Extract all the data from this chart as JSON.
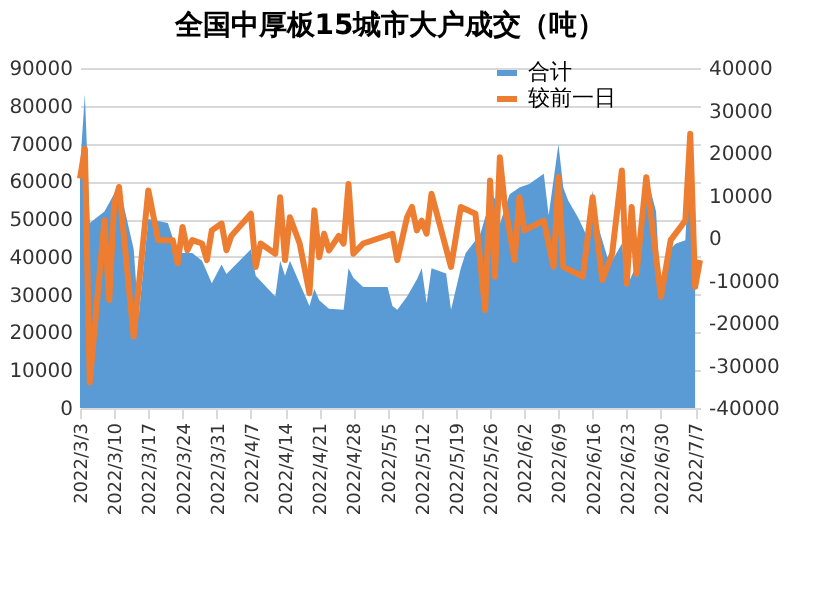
{
  "chart_data": {
    "type": "area",
    "title": "全国中厚板15城市大户成交（吨）",
    "legend": "top right",
    "grid": "y",
    "xlim": [
      "2022-03-03",
      "2022-07-08"
    ],
    "xticks": [
      {
        "value": "2022-03-03",
        "label": "2022/3/3"
      },
      {
        "value": "2022-03-10",
        "label": "2022/3/10"
      },
      {
        "value": "2022-03-17",
        "label": "2022/3/17"
      },
      {
        "value": "2022-03-24",
        "label": "2022/3/24"
      },
      {
        "value": "2022-03-31",
        "label": "2022/3/31"
      },
      {
        "value": "2022-04-07",
        "label": "2022/4/7"
      },
      {
        "value": "2022-04-14",
        "label": "2022/4/14"
      },
      {
        "value": "2022-04-21",
        "label": "2022/4/21"
      },
      {
        "value": "2022-04-28",
        "label": "2022/4/28"
      },
      {
        "value": "2022-05-05",
        "label": "2022/5/5"
      },
      {
        "value": "2022-05-12",
        "label": "2022/5/12"
      },
      {
        "value": "2022-05-19",
        "label": "2022/5/19"
      },
      {
        "value": "2022-05-26",
        "label": "2022/5/26"
      },
      {
        "value": "2022-06-02",
        "label": "2022/6/2"
      },
      {
        "value": "2022-06-09",
        "label": "2022/6/9"
      },
      {
        "value": "2022-06-16",
        "label": "2022/6/16"
      },
      {
        "value": "2022-06-23",
        "label": "2022/6/23"
      },
      {
        "value": "2022-06-30",
        "label": "2022/6/30"
      },
      {
        "value": "2022-07-07",
        "label": "2022/7/7"
      }
    ],
    "ylim": [
      0,
      90000
    ],
    "yticks": [
      0,
      10000,
      20000,
      30000,
      40000,
      50000,
      60000,
      70000,
      80000,
      90000
    ],
    "y2lim": [
      -40000,
      40000
    ],
    "y2ticks": [
      -40000,
      -30000,
      -20000,
      -10000,
      0,
      10000,
      20000,
      30000,
      40000
    ],
    "series": [
      {
        "name": "合计",
        "type": "area",
        "color": "#5b9bd5",
        "x": [
          "2022-03-03",
          "2022-03-04",
          "2022-03-05",
          "2022-03-08",
          "2022-03-11",
          "2022-03-14",
          "2022-03-15",
          "2022-03-17",
          "2022-03-21",
          "2022-03-23",
          "2022-03-26",
          "2022-03-28",
          "2022-03-30",
          "2022-04-01",
          "2022-04-02",
          "2022-04-07",
          "2022-04-08",
          "2022-04-12",
          "2022-04-13",
          "2022-04-14",
          "2022-04-15",
          "2022-04-19",
          "2022-04-20",
          "2022-04-21",
          "2022-04-23",
          "2022-04-26",
          "2022-04-27",
          "2022-04-28",
          "2022-04-30",
          "2022-05-05",
          "2022-05-06",
          "2022-05-07",
          "2022-05-09",
          "2022-05-11",
          "2022-05-12",
          "2022-05-13",
          "2022-05-14",
          "2022-05-17",
          "2022-05-18",
          "2022-05-20",
          "2022-05-21",
          "2022-05-24",
          "2022-05-25",
          "2022-05-27",
          "2022-05-28",
          "2022-05-30",
          "2022-06-01",
          "2022-06-03",
          "2022-06-06",
          "2022-06-07",
          "2022-06-09",
          "2022-06-10",
          "2022-06-11",
          "2022-06-13",
          "2022-06-15",
          "2022-06-16",
          "2022-06-17",
          "2022-06-19",
          "2022-06-20",
          "2022-06-22",
          "2022-06-23",
          "2022-06-25",
          "2022-06-27",
          "2022-06-29",
          "2022-06-30",
          "2022-07-01",
          "2022-07-03",
          "2022-07-05",
          "2022-07-06",
          "2022-07-07"
        ],
        "values": [
          63600,
          83000,
          49000,
          52000,
          59000,
          42000,
          24000,
          50000,
          49000,
          41000,
          41000,
          39000,
          33000,
          38000,
          35500,
          42000,
          35000,
          29500,
          39000,
          35000,
          39000,
          27000,
          31500,
          28500,
          26300,
          26000,
          37000,
          34500,
          32000,
          32000,
          27000,
          26000,
          29500,
          34000,
          37000,
          27700,
          37000,
          35600,
          26000,
          37000,
          41000,
          46000,
          50500,
          55800,
          48700,
          56600,
          58400,
          59300,
          62000,
          51000,
          69800,
          58400,
          54900,
          50500,
          45000,
          57500,
          48700,
          40000,
          39000,
          43500,
          32000,
          38000,
          62000,
          52000,
          28600,
          40900,
          43500,
          44400,
          70700,
          51400
        ]
      },
      {
        "name": "较前一日",
        "type": "line",
        "axis": "y2",
        "color": "#ed7d31",
        "line_style": "solid",
        "x": [
          "2022-03-03",
          "2022-03-04",
          "2022-03-05",
          "2022-03-08",
          "2022-03-09",
          "2022-03-10",
          "2022-03-11",
          "2022-03-14",
          "2022-03-17",
          "2022-03-19",
          "2022-03-22",
          "2022-03-23",
          "2022-03-24",
          "2022-03-25",
          "2022-03-26",
          "2022-03-28",
          "2022-03-29",
          "2022-03-30",
          "2022-04-01",
          "2022-04-02",
          "2022-04-03",
          "2022-04-07",
          "2022-04-08",
          "2022-04-09",
          "2022-04-12",
          "2022-04-13",
          "2022-04-14",
          "2022-04-15",
          "2022-04-17",
          "2022-04-19",
          "2022-04-20",
          "2022-04-21",
          "2022-04-22",
          "2022-04-23",
          "2022-04-25",
          "2022-04-26",
          "2022-04-27",
          "2022-04-28",
          "2022-04-30",
          "2022-05-06",
          "2022-05-07",
          "2022-05-09",
          "2022-05-10",
          "2022-05-11",
          "2022-05-12",
          "2022-05-13",
          "2022-05-14",
          "2022-05-18",
          "2022-05-20",
          "2022-05-23",
          "2022-05-25",
          "2022-05-26",
          "2022-05-27",
          "2022-05-28",
          "2022-05-29",
          "2022-05-31",
          "2022-06-01",
          "2022-06-02",
          "2022-06-06",
          "2022-06-08",
          "2022-06-09",
          "2022-06-10",
          "2022-06-14",
          "2022-06-16",
          "2022-06-18",
          "2022-06-20",
          "2022-06-22",
          "2022-06-23",
          "2022-06-24",
          "2022-06-25",
          "2022-06-27",
          "2022-06-30",
          "2022-07-02",
          "2022-07-05",
          "2022-07-06",
          "2022-07-07",
          "2022-07-08"
        ],
        "values": [
          14000,
          21000,
          -34000,
          4100,
          -14600,
          8000,
          12000,
          -23200,
          11200,
          -500,
          -500,
          -6000,
          2600,
          -2900,
          -500,
          -1300,
          -5200,
          1800,
          3400,
          -2900,
          500,
          5700,
          -6800,
          -1300,
          -3700,
          9600,
          -5200,
          4900,
          -1300,
          -13000,
          6500,
          -4500,
          1000,
          -2900,
          500,
          -1300,
          12700,
          -3700,
          -1300,
          1000,
          -5200,
          4900,
          7300,
          1800,
          4100,
          1000,
          10400,
          -6800,
          7300,
          5700,
          -17000,
          13500,
          -9100,
          19000,
          8000,
          -5200,
          9600,
          1800,
          4100,
          -6800,
          14300,
          -6800,
          -9100,
          9600,
          -9900,
          -3700,
          15900,
          -10700,
          7300,
          -8400,
          14300,
          -13800,
          -500,
          4100,
          24500,
          -11500,
          -5200
        ]
      }
    ]
  }
}
